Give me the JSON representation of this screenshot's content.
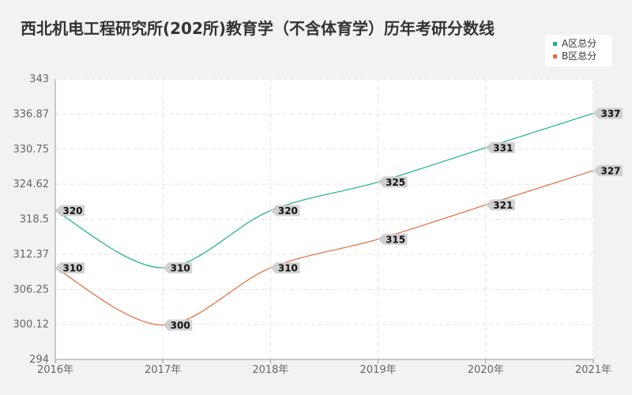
{
  "chart_data": {
    "type": "line",
    "title": "西北机电工程研究所(202所)教育学（不含体育学）历年考研分数线",
    "categories": [
      "2016年",
      "2017年",
      "2018年",
      "2019年",
      "2020年",
      "2021年"
    ],
    "series": [
      {
        "name": "A区总分",
        "values": [
          320,
          310,
          320,
          325,
          331,
          337
        ],
        "color": "#1aaf8b"
      },
      {
        "name": "B区总分",
        "values": [
          310,
          300,
          310,
          315,
          321,
          327
        ],
        "color": "#e26a3d"
      }
    ],
    "ylim": [
      294,
      343
    ],
    "yticks": [
      "294",
      "300.12",
      "306.25",
      "312.37",
      "318.5",
      "324.62",
      "330.75",
      "336.87",
      "343"
    ],
    "grid": true,
    "legend": "top-right"
  }
}
